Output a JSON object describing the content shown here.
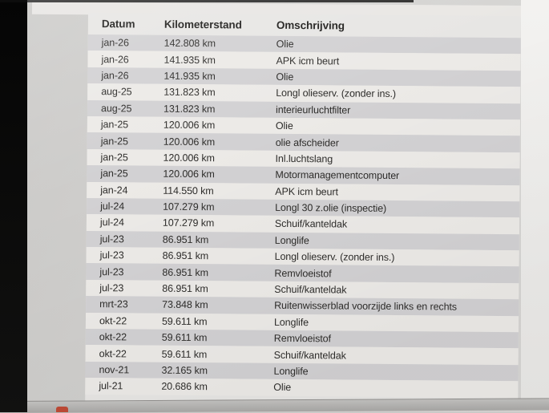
{
  "colors": {
    "bezel": "#0a0a0a",
    "screen_bg": "#d3d2d0",
    "row_shaded": "#d2d1d3",
    "row_light": "#eceae7",
    "text": "#2e2d2b",
    "right_strip": "#f1f0ee",
    "bottom_strip": "#aeadab",
    "dock_icon_red": "#bf4a35"
  },
  "table": {
    "columns": [
      {
        "key": "datum",
        "label": "Datum"
      },
      {
        "key": "km",
        "label": "Kilometerstand"
      },
      {
        "key": "omschrijving",
        "label": "Omschrijving"
      }
    ],
    "rows": [
      {
        "datum": "jan-26",
        "km": "142.808 km",
        "omschrijving": "Olie"
      },
      {
        "datum": "jan-26",
        "km": "141.935 km",
        "omschrijving": "APK icm beurt"
      },
      {
        "datum": "jan-26",
        "km": "141.935 km",
        "omschrijving": "Olie"
      },
      {
        "datum": "aug-25",
        "km": "131.823 km",
        "omschrijving": "Longl olieserv. (zonder ins.)"
      },
      {
        "datum": "aug-25",
        "km": "131.823 km",
        "omschrijving": "interieurluchtfilter"
      },
      {
        "datum": "jan-25",
        "km": "120.006 km",
        "omschrijving": "Olie"
      },
      {
        "datum": "jan-25",
        "km": "120.006 km",
        "omschrijving": "olie afscheider"
      },
      {
        "datum": "jan-25",
        "km": "120.006 km",
        "omschrijving": "Inl.luchtslang"
      },
      {
        "datum": "jan-25",
        "km": "120.006 km",
        "omschrijving": "Motormanagementcomputer"
      },
      {
        "datum": "jan-24",
        "km": "114.550 km",
        "omschrijving": "APK icm beurt"
      },
      {
        "datum": "jul-24",
        "km": "107.279 km",
        "omschrijving": "Longl 30 z.olie (inspectie)"
      },
      {
        "datum": "jul-24",
        "km": "107.279 km",
        "omschrijving": "Schuif/kanteldak"
      },
      {
        "datum": "jul-23",
        "km": "86.951 km",
        "omschrijving": "Longlife"
      },
      {
        "datum": "jul-23",
        "km": "86.951 km",
        "omschrijving": "Longl olieserv. (zonder ins.)"
      },
      {
        "datum": "jul-23",
        "km": "86.951 km",
        "omschrijving": "Remvloeistof"
      },
      {
        "datum": "jul-23",
        "km": "86.951 km",
        "omschrijving": "Schuif/kanteldak"
      },
      {
        "datum": "mrt-23",
        "km": "73.848 km",
        "omschrijving": "Ruitenwisserblad voorzijde links en rechts"
      },
      {
        "datum": "okt-22",
        "km": "59.611 km",
        "omschrijving": "Longlife"
      },
      {
        "datum": "okt-22",
        "km": "59.611 km",
        "omschrijving": "Remvloeistof"
      },
      {
        "datum": "okt-22",
        "km": "59.611 km",
        "omschrijving": "Schuif/kanteldak"
      },
      {
        "datum": "nov-21",
        "km": "32.165 km",
        "omschrijving": "Longlife"
      },
      {
        "datum": "jul-21",
        "km": "20.686 km",
        "omschrijving": "Olie"
      }
    ]
  }
}
